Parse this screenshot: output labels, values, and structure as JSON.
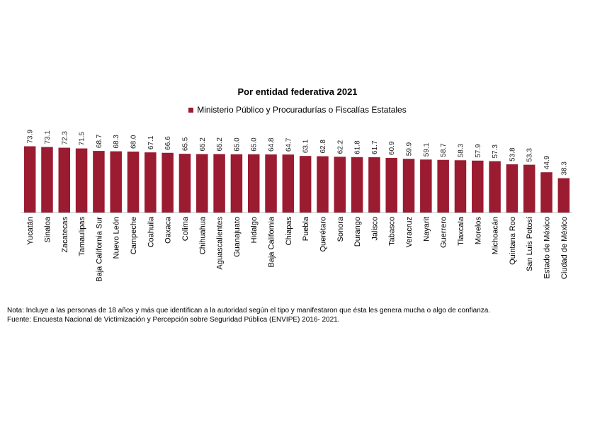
{
  "chart_data": {
    "type": "bar",
    "title": "Por entidad federativa 2021",
    "series": [
      {
        "name": "Ministerio Público y Procuradurías o Fiscalías Estatales",
        "values": [
          73.9,
          73.1,
          72.3,
          71.5,
          68.7,
          68.3,
          68.0,
          67.1,
          66.6,
          65.5,
          65.2,
          65.2,
          65.0,
          65.0,
          64.8,
          64.7,
          63.1,
          62.8,
          62.2,
          61.8,
          61.7,
          60.9,
          59.9,
          59.1,
          58.7,
          58.3,
          57.9,
          57.3,
          53.8,
          53.3,
          44.9,
          38.3
        ]
      }
    ],
    "value_labels": [
      "73.9",
      "73.1",
      "72.3",
      "71.5",
      "68.7",
      "68.3",
      "68.0",
      "67.1",
      "66.6",
      "65.5",
      "65.2",
      "65.2",
      "65.0",
      "65.0",
      "64.8",
      "64.7",
      "63.1",
      "62.8",
      "62.2",
      "61.8",
      "61.7",
      "60.9",
      "59.9",
      "59.1",
      "58.7",
      "58.3",
      "57.9",
      "57.3",
      "53.8",
      "53.3",
      "44.9",
      "38.3"
    ],
    "categories": [
      "Yucatán",
      "Sinaloa",
      "Zacatecas",
      "Tamaulipas",
      "Baja California Sur",
      "Nuevo León",
      "Campeche",
      "Coahuila",
      "Oaxaca",
      "Colima",
      "Chihuahua",
      "Aguascalientes",
      "Guanajuato",
      "Hidalgo",
      "Baja California",
      "Chiapas",
      "Puebla",
      "Querétaro",
      "Sonora",
      "Durango",
      "Jalisco",
      "Tabasco",
      "Veracruz",
      "Nayarit",
      "Guerrero",
      "Tlaxcala",
      "Morelos",
      "Michoacán",
      "Quintana Roo",
      "San Luis Potosí",
      "Estado de México",
      "Ciudad de México"
    ],
    "ylim": [
      0,
      100
    ],
    "grid": false,
    "legend_position": "top",
    "colors": {
      "bar": "#9b1b30",
      "axis": "#bfbfbf"
    }
  },
  "notes": {
    "nota": "Nota: Incluye a las personas de 18 años y más que identifican a la autoridad según el tipo y manifestaron que ésta les genera mucha o algo de confianza.",
    "fuente": "Fuente: Encuesta Nacional de Victimización y Percepción sobre Seguridad Pública (ENVIPE) 2016- 2021."
  }
}
